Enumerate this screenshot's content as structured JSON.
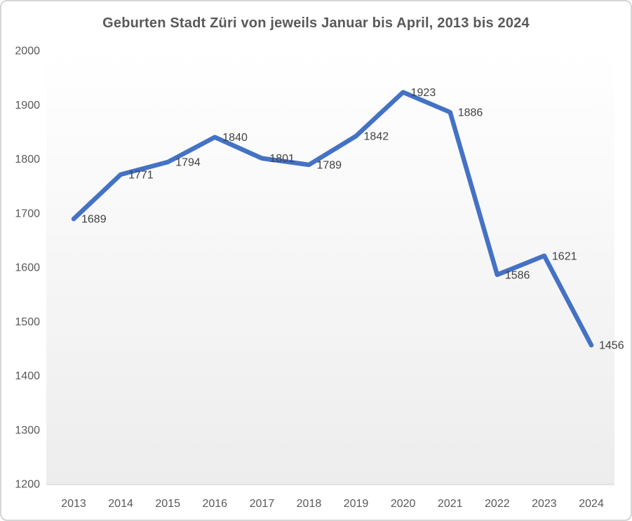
{
  "chart_data": {
    "type": "line",
    "title": "Geburten Stadt Züri von jeweils Januar bis April, 2013 bis 2024",
    "categories": [
      "2013",
      "2014",
      "2015",
      "2016",
      "2017",
      "2018",
      "2019",
      "2020",
      "2021",
      "2022",
      "2023",
      "2024"
    ],
    "values": [
      1689,
      1771,
      1794,
      1840,
      1801,
      1789,
      1842,
      1923,
      1886,
      1586,
      1621,
      1456
    ],
    "xlabel": "",
    "ylabel": "",
    "ylim": [
      1200,
      2000
    ],
    "ytick_step": 100,
    "yticks": [
      1200,
      1300,
      1400,
      1500,
      1600,
      1700,
      1800,
      1900,
      2000
    ],
    "grid": false,
    "legend_position": "none",
    "data_labels_position": "right",
    "colors": {
      "line": "#4472C4",
      "data_label": "#404040",
      "axis_label": "#595959",
      "title": "#595959",
      "axis_line": "#d9d9d9",
      "plot_gradient_top": "#ffffff",
      "plot_gradient_bottom": "#ededed",
      "frame_border": "#d6d6d6"
    },
    "line_width": 6.5
  }
}
